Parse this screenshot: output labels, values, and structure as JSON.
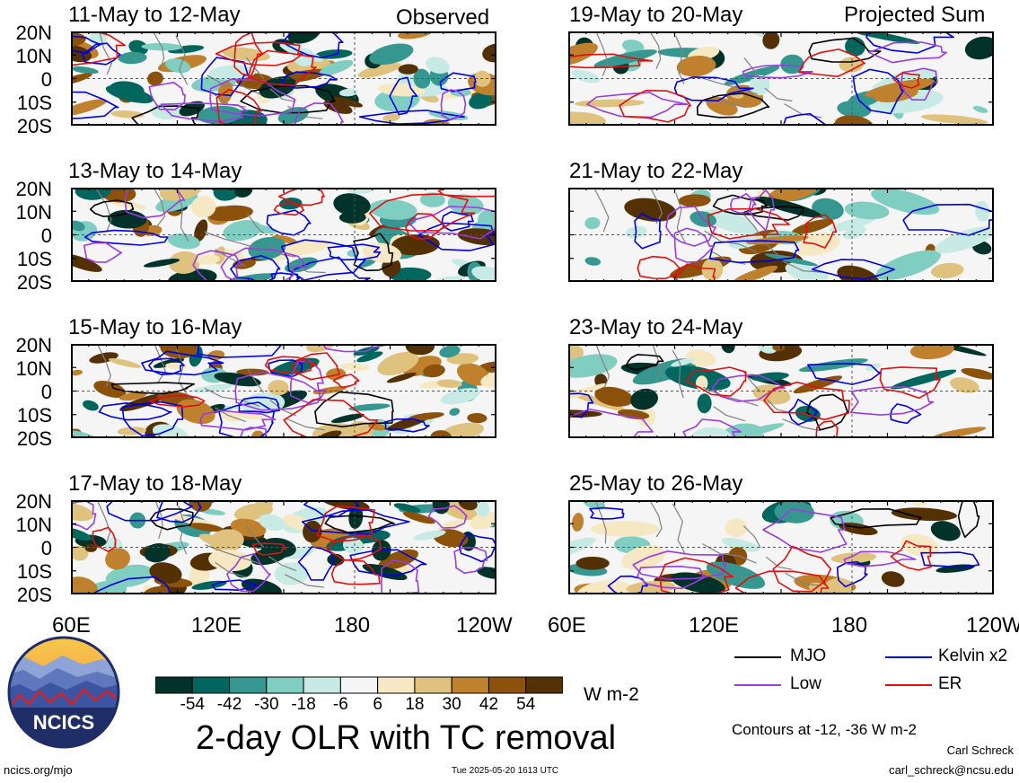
{
  "header": {
    "left_label": "Observed",
    "right_label": "Projected Sum"
  },
  "panels": {
    "left": [
      "11-May to 12-May",
      "13-May to 14-May",
      "15-May to 16-May",
      "17-May to 18-May"
    ],
    "right": [
      "19-May to 20-May",
      "21-May to 22-May",
      "23-May to 24-May",
      "25-May to 26-May"
    ]
  },
  "axes": {
    "lat_ticks": [
      "20N",
      "10N",
      "0",
      "10S",
      "20S"
    ],
    "lon_ticks": [
      "60E",
      "120E",
      "180",
      "120W"
    ]
  },
  "legend": {
    "items": [
      {
        "label": "MJO",
        "color": "#000000"
      },
      {
        "label": "Kelvin x2",
        "color": "#0000e0"
      },
      {
        "label": "Low",
        "color": "#9a3ce0"
      },
      {
        "label": "ER",
        "color": "#e01010"
      }
    ],
    "contour_note": "Contours at -12, -36 W m-2"
  },
  "colorbar": {
    "colors": [
      "#01332b",
      "#01665e",
      "#35978f",
      "#80cdc1",
      "#c7eae5",
      "#f5f5f5",
      "#f6e8c3",
      "#dfc27d",
      "#bf812d",
      "#8c510a",
      "#543005"
    ],
    "tick_labels": [
      "-54",
      "-42",
      "-30",
      "-18",
      "-6",
      "6",
      "18",
      "30",
      "42",
      "54"
    ],
    "units": "W m-2"
  },
  "footer": {
    "title": "2-day OLR with TC removal",
    "site": "ncics.org/mjo",
    "timestamp": "Tue 2025-05-20 1613 UTC",
    "author": "Carl Schreck",
    "email": "carl_schreck@ncsu.edu",
    "logo_text": "NCICS"
  }
}
